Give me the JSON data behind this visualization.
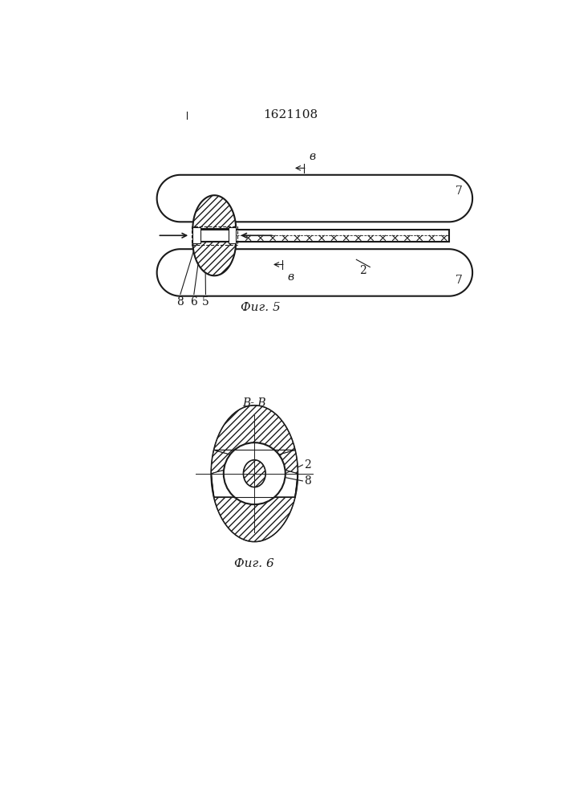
{
  "title": "1621108",
  "fig5_label": "Фиг. 5",
  "fig6_label": "Фиг. 6",
  "bg_color": "#ffffff",
  "line_color": "#1a1a1a",
  "label_7": "7",
  "label_2": "2",
  "label_5": "5",
  "label_6": "6",
  "label_8": "8",
  "label_v": "в",
  "label_8_fig6": "8",
  "label_2_fig6": "2"
}
